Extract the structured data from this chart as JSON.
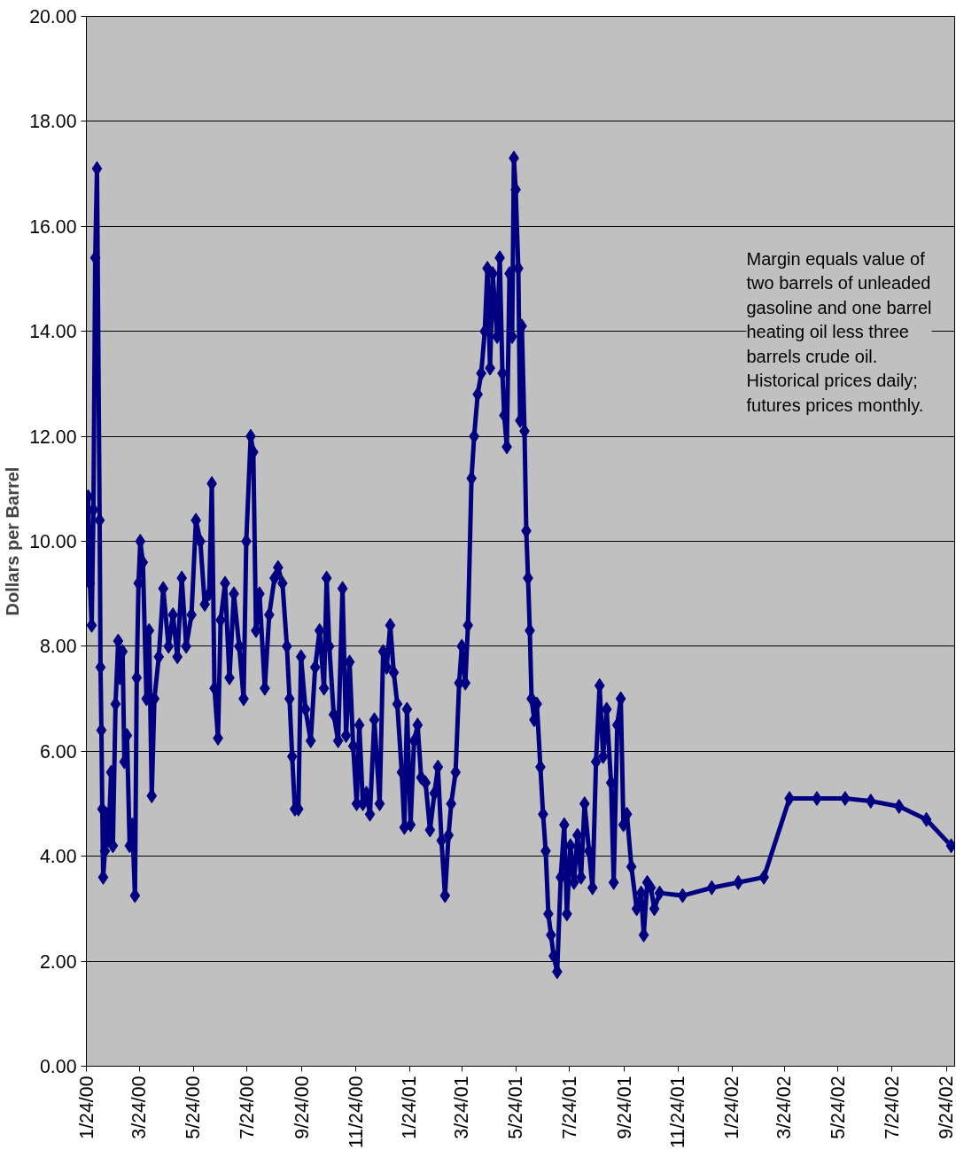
{
  "chart_data": {
    "type": "line",
    "ylabel": "Dollars per Barrel",
    "annotations": [
      "Margin equals value of\ntwo barrels of unleaded\ngasoline and one barrel\nheating oil less three\nbarrels crude oil.\nHistorical prices daily;\nfutures prices monthly."
    ],
    "x": [
      "2000-01-24",
      "2000-01-26",
      "2000-01-28",
      "2000-01-30",
      "2000-02-01",
      "2000-02-03",
      "2000-02-05",
      "2000-02-08",
      "2000-02-09",
      "2000-02-10",
      "2000-02-11",
      "2000-02-12",
      "2000-02-14",
      "2000-02-16",
      "2000-02-18",
      "2000-02-21",
      "2000-02-23",
      "2000-02-26",
      "2000-02-29",
      "2000-03-02",
      "2000-03-05",
      "2000-03-07",
      "2000-03-10",
      "2000-03-13",
      "2000-03-16",
      "2000-03-19",
      "2000-03-21",
      "2000-03-23",
      "2000-03-25",
      "2000-03-28",
      "2000-04-01",
      "2000-04-04",
      "2000-04-07",
      "2000-04-10",
      "2000-04-15",
      "2000-04-20",
      "2000-04-26",
      "2000-05-01",
      "2000-05-06",
      "2000-05-11",
      "2000-05-16",
      "2000-05-22",
      "2000-05-27",
      "2000-06-01",
      "2000-06-06",
      "2000-06-11",
      "2000-06-14",
      "2000-06-17",
      "2000-06-21",
      "2000-06-24",
      "2000-06-29",
      "2000-07-04",
      "2000-07-09",
      "2000-07-15",
      "2000-07-20",
      "2000-07-23",
      "2000-07-28",
      "2000-07-31",
      "2000-08-03",
      "2000-08-07",
      "2000-08-13",
      "2000-08-18",
      "2000-08-24",
      "2000-08-28",
      "2000-09-02",
      "2000-09-07",
      "2000-09-10",
      "2000-09-13",
      "2000-09-16",
      "2000-09-20",
      "2000-09-23",
      "2000-09-28",
      "2000-10-04",
      "2000-10-09",
      "2000-10-14",
      "2000-10-19",
      "2000-10-22",
      "2000-10-25",
      "2000-10-30",
      "2000-11-04",
      "2000-11-09",
      "2000-11-13",
      "2000-11-17",
      "2000-11-21",
      "2000-11-25",
      "2000-11-28",
      "2000-12-02",
      "2000-12-06",
      "2000-12-10",
      "2000-12-15",
      "2000-12-21",
      "2000-12-25",
      "2000-12-29",
      "2001-01-02",
      "2001-01-06",
      "2001-01-10",
      "2001-01-15",
      "2001-01-18",
      "2001-01-21",
      "2001-01-25",
      "2001-01-29",
      "2001-02-02",
      "2001-02-06",
      "2001-02-11",
      "2001-02-16",
      "2001-02-21",
      "2001-02-25",
      "2001-03-01",
      "2001-03-05",
      "2001-03-09",
      "2001-03-12",
      "2001-03-17",
      "2001-03-21",
      "2001-03-24",
      "2001-03-28",
      "2001-03-31",
      "2001-04-04",
      "2001-04-07",
      "2001-04-11",
      "2001-04-15",
      "2001-04-19",
      "2001-04-22",
      "2001-04-25",
      "2001-04-28",
      "2001-05-03",
      "2001-05-06",
      "2001-05-09",
      "2001-05-11",
      "2001-05-14",
      "2001-05-17",
      "2001-05-20",
      "2001-05-22",
      "2001-05-24",
      "2001-05-27",
      "2001-05-29",
      "2001-05-31",
      "2001-06-03",
      "2001-06-05",
      "2001-06-07",
      "2001-06-09",
      "2001-06-11",
      "2001-06-14",
      "2001-06-17",
      "2001-06-21",
      "2001-06-24",
      "2001-06-27",
      "2001-06-30",
      "2001-07-03",
      "2001-07-06",
      "2001-07-10",
      "2001-07-14",
      "2001-07-18",
      "2001-07-21",
      "2001-07-25",
      "2001-07-29",
      "2001-08-02",
      "2001-08-06",
      "2001-08-10",
      "2001-08-15",
      "2001-08-19",
      "2001-08-23",
      "2001-08-27",
      "2001-08-31",
      "2001-09-04",
      "2001-09-09",
      "2001-09-12",
      "2001-09-16",
      "2001-09-20",
      "2001-09-23",
      "2001-09-27",
      "2001-10-02",
      "2001-10-08",
      "2001-10-13",
      "2001-10-16",
      "2001-10-20",
      "2001-10-24",
      "2001-10-28",
      "2001-11-03",
      "2001-11-29",
      "2002-01-01",
      "2002-01-31",
      "2002-03-01",
      "2002-03-30",
      "2002-04-30",
      "2002-06-01",
      "2002-06-30",
      "2002-08-01",
      "2002-09-01",
      "2002-09-29"
    ],
    "series": [
      {
        "color": "#000080",
        "values": [
          9.3,
          10.85,
          9.2,
          8.4,
          10.6,
          15.4,
          17.1,
          10.4,
          7.6,
          6.4,
          4.9,
          3.6,
          4.1,
          4.8,
          4.3,
          5.6,
          4.2,
          6.9,
          8.1,
          7.4,
          7.9,
          5.8,
          6.3,
          4.2,
          4.6,
          3.25,
          7.4,
          9.2,
          10.0,
          9.6,
          7.0,
          8.3,
          5.15,
          7.0,
          7.8,
          9.1,
          8.0,
          8.6,
          7.8,
          9.3,
          8.0,
          8.6,
          10.4,
          10.0,
          8.8,
          9.0,
          11.1,
          7.2,
          6.25,
          8.5,
          9.2,
          7.4,
          9.0,
          8.0,
          7.0,
          10.0,
          12.0,
          11.7,
          8.3,
          9.0,
          7.2,
          8.6,
          9.3,
          9.5,
          9.2,
          8.0,
          7.0,
          5.9,
          4.9,
          4.9,
          7.8,
          6.8,
          6.2,
          7.6,
          8.3,
          7.2,
          9.3,
          8.0,
          6.7,
          6.2,
          9.1,
          6.3,
          7.7,
          6.1,
          5.0,
          6.5,
          5.0,
          5.2,
          4.8,
          6.6,
          5.0,
          7.9,
          7.6,
          8.4,
          7.5,
          6.9,
          5.6,
          4.55,
          6.8,
          4.6,
          6.2,
          6.5,
          5.5,
          5.4,
          4.5,
          5.2,
          5.7,
          4.3,
          3.25,
          4.4,
          5.0,
          5.6,
          7.3,
          8.0,
          7.3,
          8.4,
          11.2,
          12.0,
          12.8,
          13.2,
          14.0,
          15.2,
          13.3,
          15.1,
          13.9,
          15.4,
          13.2,
          12.4,
          11.8,
          15.1,
          13.9,
          17.3,
          16.7,
          15.2,
          12.3,
          14.1,
          12.1,
          10.2,
          9.3,
          8.3,
          7.0,
          6.6,
          6.9,
          5.7,
          4.8,
          4.1,
          2.9,
          2.5,
          2.1,
          1.8,
          3.6,
          4.6,
          2.9,
          4.2,
          3.5,
          4.4,
          3.6,
          5.0,
          4.1,
          3.4,
          5.8,
          7.25,
          5.9,
          6.8,
          5.4,
          3.5,
          6.5,
          7.0,
          4.6,
          4.8,
          3.8,
          3.0,
          3.3,
          2.5,
          3.5,
          3.4,
          3.0,
          3.3,
          3.25,
          3.4,
          3.5,
          3.6,
          5.1,
          5.1,
          5.1,
          5.05,
          4.95,
          4.7,
          4.2
        ]
      }
    ],
    "marker": "diamond",
    "line_style": "solid",
    "grid": "y",
    "xlim": [
      "2000-01-24",
      "2002-10-03"
    ],
    "xticks": [
      {
        "value": "2000-01-24",
        "label": "1/24/00"
      },
      {
        "value": "2000-03-24",
        "label": "3/24/00"
      },
      {
        "value": "2000-05-24",
        "label": "5/24/00"
      },
      {
        "value": "2000-07-24",
        "label": "7/24/00"
      },
      {
        "value": "2000-09-24",
        "label": "9/24/00"
      },
      {
        "value": "2000-11-24",
        "label": "11/24/00"
      },
      {
        "value": "2001-01-24",
        "label": "1/24/01"
      },
      {
        "value": "2001-03-24",
        "label": "3/24/01"
      },
      {
        "value": "2001-05-24",
        "label": "5/24/01"
      },
      {
        "value": "2001-07-24",
        "label": "7/24/01"
      },
      {
        "value": "2001-09-24",
        "label": "9/24/01"
      },
      {
        "value": "2001-11-24",
        "label": "11/24/01"
      },
      {
        "value": "2002-01-24",
        "label": "1/24/02"
      },
      {
        "value": "2002-03-24",
        "label": "3/24/02"
      },
      {
        "value": "2002-05-24",
        "label": "5/24/02"
      },
      {
        "value": "2002-07-24",
        "label": "7/24/02"
      },
      {
        "value": "2002-09-24",
        "label": "9/24/02"
      }
    ],
    "ylim": [
      0,
      20
    ],
    "yticks": [
      {
        "value": 0,
        "label": "0.00"
      },
      {
        "value": 2,
        "label": "2.00"
      },
      {
        "value": 4,
        "label": "4.00"
      },
      {
        "value": 6,
        "label": "6.00"
      },
      {
        "value": 8,
        "label": "8.00"
      },
      {
        "value": 10,
        "label": "10.00"
      },
      {
        "value": 12,
        "label": "12.00"
      },
      {
        "value": 14,
        "label": "14.00"
      },
      {
        "value": 16,
        "label": "16.00"
      },
      {
        "value": 18,
        "label": "18.00"
      },
      {
        "value": 20,
        "label": "20.00"
      }
    ]
  }
}
